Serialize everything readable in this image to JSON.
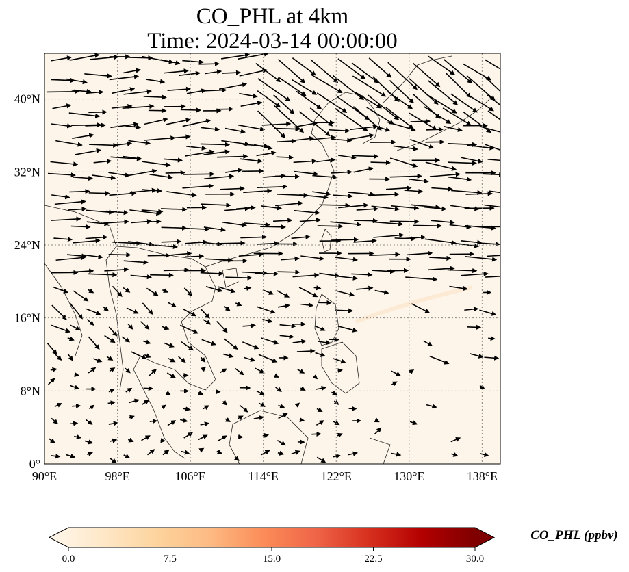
{
  "title": {
    "line1": "CO_PHL at 4km",
    "line2": "Time: 2024-03-14 00:00:00"
  },
  "map": {
    "lon_range": [
      90,
      140
    ],
    "lat_range": [
      0,
      45
    ],
    "lon_ticks": [
      "90°E",
      "98°E",
      "106°E",
      "114°E",
      "122°E",
      "130°E",
      "138°E"
    ],
    "lat_ticks": [
      "0°",
      "8°N",
      "16°N",
      "24°N",
      "32°N",
      "40°N"
    ],
    "gridlines": true,
    "field_colour": "#fdf5e9",
    "wind_vectors": true
  },
  "colorbar": {
    "label": "CO_PHL (ppbv)",
    "ticks": [
      "0.0",
      "7.5",
      "15.0",
      "22.5",
      "30.0"
    ],
    "range": [
      0,
      30
    ],
    "extend": "both",
    "colormap": "OrRd",
    "colors": [
      "#fff7ec",
      "#fee8c8",
      "#fdd49e",
      "#fdbb84",
      "#fc8d59",
      "#ef6548",
      "#d7301f",
      "#b30000",
      "#7f0000"
    ]
  }
}
